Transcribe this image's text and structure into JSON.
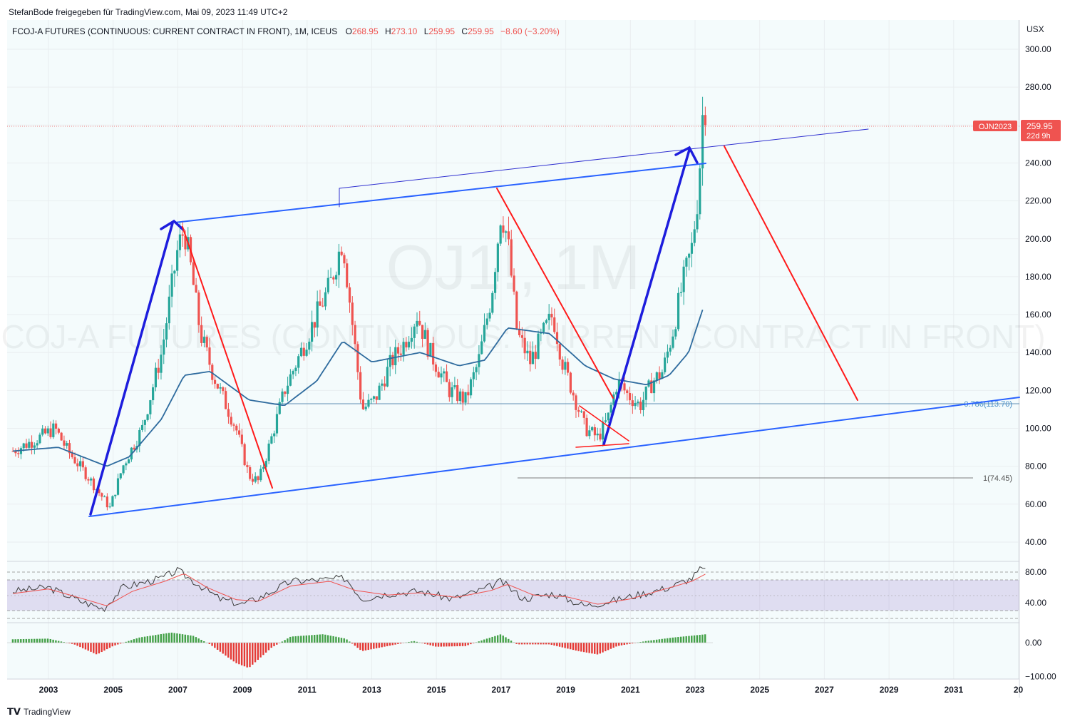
{
  "header": {
    "published_by": "StefanBode freigegeben für TradingView.com, Mai 09, 2023 11:49 UTC+2"
  },
  "legend": {
    "symbol": "FCOJ-A FUTURES (CONTINUOUS: CURRENT CONTRACT IN FRONT), 1M, ICEUS",
    "o_label": "O",
    "o": "268.95",
    "h_label": "H",
    "h": "273.10",
    "l_label": "L",
    "l": "259.95",
    "c_label": "C",
    "c": "259.95",
    "change": "−8.60 (−3.20%)"
  },
  "watermark": {
    "line1": "OJ1!, 1M",
    "line2": "FCOJ-A FUTURES (CONTINUOUS: CURRENT CONTRACT IN FRONT)"
  },
  "currency": "USX",
  "price_badge": {
    "label": "OJN2023",
    "price": "259.95",
    "countdown": "22d 9h",
    "color": "#ef5350"
  },
  "fib_labels": {
    "upper": "0.786(113.70)",
    "lower": "1(74.45)"
  },
  "footer": {
    "brand": "TradingView"
  },
  "colors": {
    "up": "#26a69a",
    "down": "#ef5350",
    "ma": "#2e6b9e",
    "channel": "#2962ff",
    "bg": "#f4fbfc"
  },
  "chart_data": [
    {
      "type": "candlestick",
      "title": "FCOJ-A FUTURES (CONTINUOUS: CURRENT CONTRACT IN FRONT), 1M, ICEUS",
      "x_ticks": [
        "2003",
        "2005",
        "2007",
        "2009",
        "2011",
        "2013",
        "2015",
        "2017",
        "2019",
        "2021",
        "2023",
        "2025",
        "2027",
        "2029",
        "2031",
        "20"
      ],
      "y_ticks": [
        "300.00",
        "280.00",
        "260.00",
        "240.00",
        "220.00",
        "200.00",
        "180.00",
        "160.00",
        "140.00",
        "120.00",
        "100.00",
        "80.00",
        "60.00",
        "40.00"
      ],
      "ylim": [
        35,
        305
      ],
      "last_close": 259.95,
      "price_path": [
        {
          "t": 2001.9,
          "p": 88
        },
        {
          "t": 2002.7,
          "p": 95
        },
        {
          "t": 2003.2,
          "p": 100
        },
        {
          "t": 2003.6,
          "p": 88
        },
        {
          "t": 2004.2,
          "p": 75
        },
        {
          "t": 2004.9,
          "p": 58
        },
        {
          "t": 2005.3,
          "p": 80
        },
        {
          "t": 2005.9,
          "p": 100
        },
        {
          "t": 2006.5,
          "p": 140
        },
        {
          "t": 2007.0,
          "p": 195
        },
        {
          "t": 2007.2,
          "p": 205
        },
        {
          "t": 2007.4,
          "p": 185
        },
        {
          "t": 2007.7,
          "p": 150
        },
        {
          "t": 2008.1,
          "p": 128
        },
        {
          "t": 2008.8,
          "p": 100
        },
        {
          "t": 2009.2,
          "p": 75
        },
        {
          "t": 2009.5,
          "p": 72
        },
        {
          "t": 2009.9,
          "p": 95
        },
        {
          "t": 2010.3,
          "p": 120
        },
        {
          "t": 2010.8,
          "p": 140
        },
        {
          "t": 2011.3,
          "p": 160
        },
        {
          "t": 2011.7,
          "p": 175
        },
        {
          "t": 2012.1,
          "p": 200
        },
        {
          "t": 2012.4,
          "p": 155
        },
        {
          "t": 2012.7,
          "p": 110
        },
        {
          "t": 2013.1,
          "p": 115
        },
        {
          "t": 2013.6,
          "p": 135
        },
        {
          "t": 2014.0,
          "p": 145
        },
        {
          "t": 2014.4,
          "p": 160
        },
        {
          "t": 2014.8,
          "p": 140
        },
        {
          "t": 2015.4,
          "p": 120
        },
        {
          "t": 2015.9,
          "p": 115
        },
        {
          "t": 2016.3,
          "p": 135
        },
        {
          "t": 2016.7,
          "p": 170
        },
        {
          "t": 2017.0,
          "p": 215
        },
        {
          "t": 2017.2,
          "p": 200
        },
        {
          "t": 2017.5,
          "p": 150
        },
        {
          "t": 2017.9,
          "p": 135
        },
        {
          "t": 2018.3,
          "p": 150
        },
        {
          "t": 2018.6,
          "p": 160
        },
        {
          "t": 2018.9,
          "p": 135
        },
        {
          "t": 2019.3,
          "p": 115
        },
        {
          "t": 2019.6,
          "p": 100
        },
        {
          "t": 2020.0,
          "p": 95
        },
        {
          "t": 2020.3,
          "p": 105
        },
        {
          "t": 2020.6,
          "p": 125
        },
        {
          "t": 2020.9,
          "p": 118
        },
        {
          "t": 2021.3,
          "p": 112
        },
        {
          "t": 2021.7,
          "p": 125
        },
        {
          "t": 2022.0,
          "p": 130
        },
        {
          "t": 2022.3,
          "p": 150
        },
        {
          "t": 2022.6,
          "p": 175
        },
        {
          "t": 2022.9,
          "p": 195
        },
        {
          "t": 2023.1,
          "p": 225
        },
        {
          "t": 2023.25,
          "p": 270
        },
        {
          "t": 2023.35,
          "p": 259.95
        }
      ],
      "moving_average": [
        {
          "t": 2001.9,
          "p": 88
        },
        {
          "t": 2003.3,
          "p": 90
        },
        {
          "t": 2004.8,
          "p": 80
        },
        {
          "t": 2005.5,
          "p": 85
        },
        {
          "t": 2006.5,
          "p": 105
        },
        {
          "t": 2007.2,
          "p": 128
        },
        {
          "t": 2008.0,
          "p": 130
        },
        {
          "t": 2009.2,
          "p": 115
        },
        {
          "t": 2010.3,
          "p": 112
        },
        {
          "t": 2011.3,
          "p": 125
        },
        {
          "t": 2012.1,
          "p": 146
        },
        {
          "t": 2013.0,
          "p": 135
        },
        {
          "t": 2014.5,
          "p": 140
        },
        {
          "t": 2015.7,
          "p": 133
        },
        {
          "t": 2016.5,
          "p": 136
        },
        {
          "t": 2017.2,
          "p": 153
        },
        {
          "t": 2018.5,
          "p": 150
        },
        {
          "t": 2019.6,
          "p": 133
        },
        {
          "t": 2020.5,
          "p": 126
        },
        {
          "t": 2021.5,
          "p": 123
        },
        {
          "t": 2022.2,
          "p": 128
        },
        {
          "t": 2022.8,
          "p": 140
        },
        {
          "t": 2023.3,
          "p": 166
        }
      ]
    },
    {
      "type": "line",
      "yticks": [
        "80.00",
        "40.00"
      ],
      "ylim": [
        20,
        90
      ],
      "upper_band": 70,
      "lower_band": 30,
      "rsi": [
        {
          "t": 2001.9,
          "v": 55
        },
        {
          "t": 2003.0,
          "v": 60
        },
        {
          "t": 2004.0,
          "v": 42
        },
        {
          "t": 2004.7,
          "v": 32
        },
        {
          "t": 2005.3,
          "v": 60
        },
        {
          "t": 2006.5,
          "v": 72
        },
        {
          "t": 2007.0,
          "v": 82
        },
        {
          "t": 2007.6,
          "v": 65
        },
        {
          "t": 2008.3,
          "v": 45
        },
        {
          "t": 2009.0,
          "v": 38
        },
        {
          "t": 2009.6,
          "v": 48
        },
        {
          "t": 2010.5,
          "v": 68
        },
        {
          "t": 2011.5,
          "v": 70
        },
        {
          "t": 2012.2,
          "v": 72
        },
        {
          "t": 2012.7,
          "v": 45
        },
        {
          "t": 2013.5,
          "v": 52
        },
        {
          "t": 2014.5,
          "v": 55
        },
        {
          "t": 2015.5,
          "v": 45
        },
        {
          "t": 2016.5,
          "v": 58
        },
        {
          "t": 2017.0,
          "v": 68
        },
        {
          "t": 2017.7,
          "v": 45
        },
        {
          "t": 2018.6,
          "v": 52
        },
        {
          "t": 2019.6,
          "v": 36
        },
        {
          "t": 2020.4,
          "v": 42
        },
        {
          "t": 2021.2,
          "v": 50
        },
        {
          "t": 2022.2,
          "v": 60
        },
        {
          "t": 2022.9,
          "v": 72
        },
        {
          "t": 2023.2,
          "v": 85
        },
        {
          "t": 2023.35,
          "v": 80
        }
      ],
      "rsi_ma": [
        {
          "t": 2001.9,
          "v": 52
        },
        {
          "t": 2003.0,
          "v": 58
        },
        {
          "t": 2004.0,
          "v": 46
        },
        {
          "t": 2004.8,
          "v": 36
        },
        {
          "t": 2005.6,
          "v": 55
        },
        {
          "t": 2006.6,
          "v": 68
        },
        {
          "t": 2007.2,
          "v": 78
        },
        {
          "t": 2007.9,
          "v": 60
        },
        {
          "t": 2008.8,
          "v": 44
        },
        {
          "t": 2009.5,
          "v": 42
        },
        {
          "t": 2010.5,
          "v": 62
        },
        {
          "t": 2011.7,
          "v": 68
        },
        {
          "t": 2012.5,
          "v": 56
        },
        {
          "t": 2013.5,
          "v": 50
        },
        {
          "t": 2014.5,
          "v": 53
        },
        {
          "t": 2015.6,
          "v": 47
        },
        {
          "t": 2016.7,
          "v": 56
        },
        {
          "t": 2017.2,
          "v": 64
        },
        {
          "t": 2018.0,
          "v": 50
        },
        {
          "t": 2019.0,
          "v": 48
        },
        {
          "t": 2020.0,
          "v": 38
        },
        {
          "t": 2021.0,
          "v": 45
        },
        {
          "t": 2022.0,
          "v": 57
        },
        {
          "t": 2022.9,
          "v": 68
        },
        {
          "t": 2023.35,
          "v": 78
        }
      ]
    },
    {
      "type": "bar",
      "yticks": [
        "0.00",
        "−100.00"
      ],
      "ylim": [
        -110,
        40
      ],
      "histogram": [
        {
          "t": 2001.9,
          "v": 10
        },
        {
          "t": 2003.0,
          "v": 12
        },
        {
          "t": 2003.8,
          "v": -5
        },
        {
          "t": 2004.5,
          "v": -35
        },
        {
          "t": 2005.0,
          "v": -10
        },
        {
          "t": 2005.8,
          "v": 15
        },
        {
          "t": 2006.8,
          "v": 30
        },
        {
          "t": 2007.5,
          "v": 20
        },
        {
          "t": 2008.0,
          "v": -5
        },
        {
          "t": 2008.8,
          "v": -60
        },
        {
          "t": 2009.2,
          "v": -75
        },
        {
          "t": 2009.9,
          "v": -15
        },
        {
          "t": 2010.5,
          "v": 18
        },
        {
          "t": 2011.5,
          "v": 25
        },
        {
          "t": 2012.2,
          "v": 12
        },
        {
          "t": 2012.7,
          "v": -25
        },
        {
          "t": 2013.5,
          "v": -10
        },
        {
          "t": 2014.3,
          "v": 5
        },
        {
          "t": 2015.0,
          "v": -12
        },
        {
          "t": 2015.9,
          "v": -10
        },
        {
          "t": 2016.5,
          "v": 10
        },
        {
          "t": 2017.0,
          "v": 25
        },
        {
          "t": 2017.5,
          "v": -5
        },
        {
          "t": 2018.5,
          "v": -5
        },
        {
          "t": 2019.4,
          "v": -25
        },
        {
          "t": 2020.0,
          "v": -35
        },
        {
          "t": 2020.6,
          "v": -10
        },
        {
          "t": 2021.5,
          "v": 5
        },
        {
          "t": 2022.3,
          "v": 15
        },
        {
          "t": 2023.35,
          "v": 25
        }
      ]
    }
  ]
}
